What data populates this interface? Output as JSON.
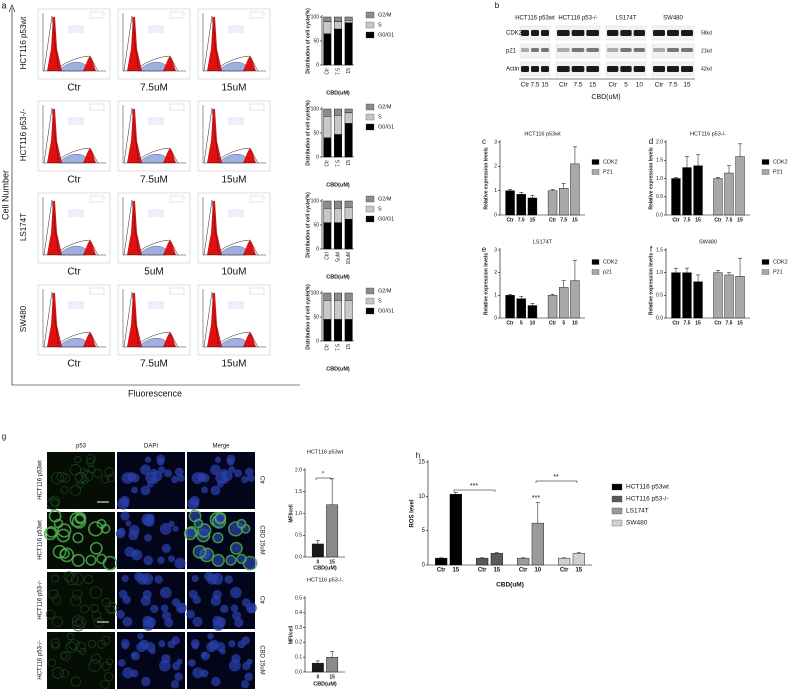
{
  "figure": {
    "panel_a": {
      "label": "a",
      "y_title": "Cell Number",
      "x_title": "Fluorescence",
      "rows": [
        {
          "cell_line": "HCT116 p53wt",
          "doses": [
            "Ctr",
            "7.5uM",
            "15uM"
          ]
        },
        {
          "cell_line": "HCT116 p53-/-",
          "doses": [
            "Ctr",
            "7.5uM",
            "15uM"
          ]
        },
        {
          "cell_line": "LS174T",
          "doses": [
            "Ctr",
            "5uM",
            "10uM"
          ]
        },
        {
          "cell_line": "SW480",
          "doses": [
            "Ctr",
            "7.5uM",
            "15uM"
          ]
        }
      ]
    },
    "panel_b": {
      "label": "b",
      "cell_lines": [
        "HCT116 p53wt",
        "HCT116 p53-/-",
        "LS174T",
        "SW480"
      ],
      "proteins": [
        "CDK2",
        "p21",
        "Actin"
      ],
      "sizes": [
        "58kd",
        "21kd",
        "42kd"
      ],
      "lanes": [
        [
          "Ctr",
          "7.5",
          "15"
        ],
        [
          "Ctr",
          "7.5",
          "15"
        ],
        [
          "Ctr",
          "5",
          "10"
        ],
        [
          "Ctr",
          "7.5",
          "15"
        ]
      ],
      "xlabel": "CBD(uM)"
    },
    "panel_g": {
      "label": "g",
      "columns": [
        "p53",
        "DAPI",
        "Merge"
      ],
      "cell_lines": [
        "HCT116 p53wt",
        "HCT116 p53wt",
        "HCT116 p53-/-",
        "HCT116 p53-/-"
      ],
      "treatments": [
        "Ctr",
        "CBD 15uM",
        "Ctr",
        "CBD 15uM"
      ]
    }
  },
  "chart_data": [
    {
      "type": "stacked_bar",
      "ylabel": "Distribution of cell cycle(%)",
      "xlabel": "CBD(uM)",
      "categories": [
        "Ctr",
        "7.5",
        "15"
      ],
      "ylim": [
        0,
        100
      ],
      "yticks": [
        0,
        50,
        100
      ],
      "series": [
        {
          "name": "G0/G1",
          "color": "#000000",
          "values": [
            65,
            75,
            88
          ]
        },
        {
          "name": "S",
          "color": "#c8c8c8",
          "values": [
            25,
            15,
            5
          ]
        },
        {
          "name": "G2/M",
          "color": "#8c8c8c",
          "values": [
            10,
            10,
            7
          ]
        }
      ]
    },
    {
      "type": "stacked_bar",
      "ylabel": "Distribution of cell cycle(%)",
      "xlabel": "CBD(uM)",
      "categories": [
        "Ctr",
        "7.5",
        "15"
      ],
      "ylim": [
        0,
        100
      ],
      "yticks": [
        0,
        50,
        100
      ],
      "series": [
        {
          "name": "G0/G1",
          "color": "#000000",
          "values": [
            40,
            47,
            70
          ]
        },
        {
          "name": "S",
          "color": "#c8c8c8",
          "values": [
            45,
            40,
            22
          ]
        },
        {
          "name": "G2/M",
          "color": "#8c8c8c",
          "values": [
            15,
            13,
            8
          ]
        }
      ]
    },
    {
      "type": "stacked_bar",
      "ylabel": "Distribution of cell cycle(%)",
      "xlabel": "CBD(uM)",
      "categories": [
        "Ctrl",
        "5uM",
        "10uM"
      ],
      "ylim": [
        0,
        100
      ],
      "yticks": [
        0,
        50,
        100
      ],
      "series": [
        {
          "name": "G0/G1",
          "color": "#000000",
          "values": [
            55,
            55,
            62
          ]
        },
        {
          "name": "S",
          "color": "#c8c8c8",
          "values": [
            30,
            30,
            25
          ]
        },
        {
          "name": "G2/M",
          "color": "#8c8c8c",
          "values": [
            15,
            15,
            13
          ]
        }
      ]
    },
    {
      "type": "stacked_bar",
      "ylabel": "Distribution of cell cycle(%)",
      "xlabel": "CBD(uM)",
      "categories": [
        "Ctr",
        "7.5",
        "15"
      ],
      "ylim": [
        0,
        100
      ],
      "yticks": [
        0,
        50,
        100
      ],
      "series": [
        {
          "name": "G0/G1",
          "color": "#000000",
          "values": [
            45,
            45,
            45
          ]
        },
        {
          "name": "S",
          "color": "#c8c8c8",
          "values": [
            40,
            40,
            40
          ]
        },
        {
          "name": "G2/M",
          "color": "#8c8c8c",
          "values": [
            15,
            15,
            15
          ]
        }
      ]
    },
    {
      "type": "grouped_bar",
      "panel": "c",
      "title": "HCT116 p53wt",
      "ylabel": "Relative expression levels",
      "categories": [
        "Ctr",
        "7.5",
        "15"
      ],
      "ylim": [
        0,
        3
      ],
      "yticks": [
        0,
        1,
        2,
        3
      ],
      "series": [
        {
          "name": "CDK2",
          "color": "#000000",
          "values": [
            1,
            0.85,
            0.7
          ],
          "errors": [
            0.05,
            0.08,
            0.1
          ]
        },
        {
          "name": "P21",
          "color": "#a8a8a8",
          "values": [
            1,
            1.1,
            2.1
          ],
          "errors": [
            0.05,
            0.2,
            0.7
          ]
        }
      ]
    },
    {
      "type": "grouped_bar",
      "panel": "d",
      "title": "HCT116 p53-/-",
      "ylabel": "Relative expression levels",
      "categories": [
        "Ctr",
        "7.5",
        "15"
      ],
      "ylim": [
        0,
        2
      ],
      "yticks": [
        {
          "value": 0,
          "label": "0.0"
        },
        0.5,
        {
          "value": 1,
          "label": "1.0"
        },
        1.5,
        {
          "value": 2,
          "label": "2.0"
        }
      ],
      "series": [
        {
          "name": "CDK2",
          "color": "#000000",
          "values": [
            1,
            1.3,
            1.35
          ],
          "errors": [
            0.03,
            0.3,
            0.3
          ]
        },
        {
          "name": "P21",
          "color": "#a8a8a8",
          "values": [
            1,
            1.15,
            1.6
          ],
          "errors": [
            0.03,
            0.2,
            0.35
          ]
        }
      ]
    },
    {
      "type": "grouped_bar",
      "panel": "e",
      "title": "LS174T",
      "ylabel": "Relative expression levels",
      "categories": [
        "Ctr",
        "5",
        "10"
      ],
      "ylim": [
        0,
        3
      ],
      "yticks": [
        0,
        1,
        2,
        3
      ],
      "series": [
        {
          "name": "CDK2",
          "color": "#000000",
          "values": [
            1,
            0.85,
            0.55
          ],
          "errors": [
            0.05,
            0.1,
            0.1
          ]
        },
        {
          "name": "p21",
          "color": "#a8a8a8",
          "values": [
            1,
            1.35,
            1.65
          ],
          "errors": [
            0.05,
            0.3,
            0.9
          ]
        }
      ]
    },
    {
      "type": "grouped_bar",
      "panel": "f",
      "title": "SW480",
      "ylabel": "Relative expression levels",
      "categories": [
        "Ctr",
        "7.5",
        "15"
      ],
      "ylim": [
        0,
        1.5
      ],
      "yticks": [
        {
          "value": 0,
          "label": "0.0"
        },
        0.5,
        {
          "value": 1,
          "label": "1.0"
        },
        1.5
      ],
      "series": [
        {
          "name": "CDK2",
          "color": "#000000",
          "values": [
            1,
            1,
            0.8
          ],
          "errors": [
            0.1,
            0.1,
            0.15
          ]
        },
        {
          "name": "P21",
          "color": "#a8a8a8",
          "values": [
            1,
            0.95,
            0.92
          ],
          "errors": [
            0.05,
            0.05,
            0.4
          ]
        }
      ]
    },
    {
      "type": "grouped_bar",
      "title": "HCT116 p53wt",
      "ylabel": "MFI/cell",
      "xlabel": "CBD(uM)",
      "categories": [
        "0",
        "15"
      ],
      "ylim": [
        0,
        2
      ],
      "yticks": [
        {
          "value": 0,
          "label": "0.0"
        },
        0.5,
        {
          "value": 1,
          "label": "1.0"
        },
        1.5,
        {
          "value": 2,
          "label": "2.0"
        }
      ],
      "series": [
        {
          "colors": [
            "#1a1a1a",
            "#8a8a8a"
          ],
          "values": [
            0.3,
            1.2
          ],
          "errors": [
            0.08,
            0.6
          ]
        }
      ],
      "annotations": [
        "*"
      ]
    },
    {
      "type": "grouped_bar",
      "title": "HCT116 p53-/-",
      "ylabel": "MFI/cell",
      "xlabel": "CBD(uM)",
      "categories": [
        "0",
        "15"
      ],
      "ylim": [
        0,
        0.5
      ],
      "yticks": [
        {
          "value": 0,
          "label": "0.0"
        },
        0.1,
        0.2,
        0.3,
        0.4,
        0.5
      ],
      "series": [
        {
          "colors": [
            "#1a1a1a",
            "#8a8a8a"
          ],
          "values": [
            0.06,
            0.1
          ],
          "errors": [
            0.015,
            0.04
          ]
        }
      ]
    },
    {
      "type": "grouped_bar",
      "panel": "h",
      "ylabel": "ROS level",
      "xlabel": "CBD(uM)",
      "ylim": [
        0,
        15
      ],
      "yticks": [
        0,
        5,
        10,
        15
      ],
      "series": [
        {
          "name": "HCT116 p53wt",
          "color": "#000000",
          "categories": [
            "Ctr",
            "15"
          ],
          "values": [
            1,
            10.3
          ],
          "errors": [
            0.05,
            0.3
          ]
        },
        {
          "name": "HCT116 p53-/-",
          "color": "#5a5a5a",
          "categories": [
            "Ctr",
            "15"
          ],
          "values": [
            1,
            1.7
          ],
          "errors": [
            0.05,
            0.1
          ]
        },
        {
          "name": "LS174T",
          "color": "#9a9a9a",
          "categories": [
            "Ctr",
            "10"
          ],
          "values": [
            1,
            6.1
          ],
          "errors": [
            0.05,
            3
          ]
        },
        {
          "name": "SW480",
          "color": "#d0d0d0",
          "categories": [
            "Ctr",
            "15"
          ],
          "values": [
            1,
            1.7
          ],
          "errors": [
            0.05,
            0.1
          ]
        }
      ],
      "annotations": [
        "***",
        "***",
        "**"
      ]
    }
  ]
}
